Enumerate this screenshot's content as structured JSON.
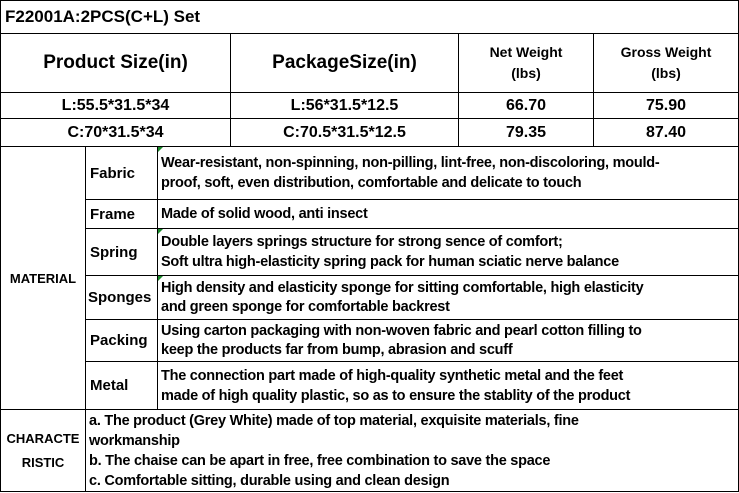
{
  "title": "F22001A:2PCS(C+L) Set",
  "headers": {
    "product_size": "Product Size(in)",
    "package_size": "PackageSize(in)",
    "net_weight": [
      "Net Weight",
      "(lbs)"
    ],
    "gross_weight": [
      "Gross Weight",
      "(lbs)"
    ]
  },
  "rows": [
    {
      "product_size": "L:55.5*31.5*34",
      "package_size": "L:56*31.5*12.5",
      "net_weight": "66.70",
      "gross_weight": "75.90"
    },
    {
      "product_size": "C:70*31.5*34",
      "package_size": "C:70.5*31.5*12.5",
      "net_weight": "79.35",
      "gross_weight": "87.40"
    }
  ],
  "material": {
    "label": "MATERIAL",
    "items": [
      {
        "name": "Fabric",
        "lines": [
          "Wear-resistant, non-spinning, non-pilling, lint-free, non-discoloring, mould-",
          "proof, soft, even distribution, comfortable and delicate to touch"
        ]
      },
      {
        "name": "Frame",
        "lines": [
          "Made of solid wood, anti insect"
        ]
      },
      {
        "name": "Spring",
        "lines": [
          "Double layers springs structure for strong sence of comfort;",
          "Soft ultra high-elasticity spring pack for human sciatic nerve balance"
        ]
      },
      {
        "name": "Sponges",
        "lines": [
          "High density and elasticity sponge for sitting comfortable, high elasticity",
          "and green sponge for comfortable backrest"
        ]
      },
      {
        "name": "Packing",
        "lines": [
          "Using carton packaging with non-woven fabric and pearl cotton filling to",
          "keep the products far from bump, abrasion and scuff"
        ]
      },
      {
        "name": "Metal",
        "lines": [
          "The connection part made of  high-quality synthetic metal and the feet",
          "made of high quality plastic, so as to ensure the stablity of  the product"
        ]
      }
    ]
  },
  "characteristic": {
    "label": [
      "CHARACTE",
      "RISTIC"
    ],
    "lines": [
      "a. The product (Grey White) made of top material, exquisite materials, fine",
      "workmanship",
      "b. The chaise can be apart in free, free combination to save the space",
      "c. Comfortable sitting, durable using and clean design"
    ]
  }
}
